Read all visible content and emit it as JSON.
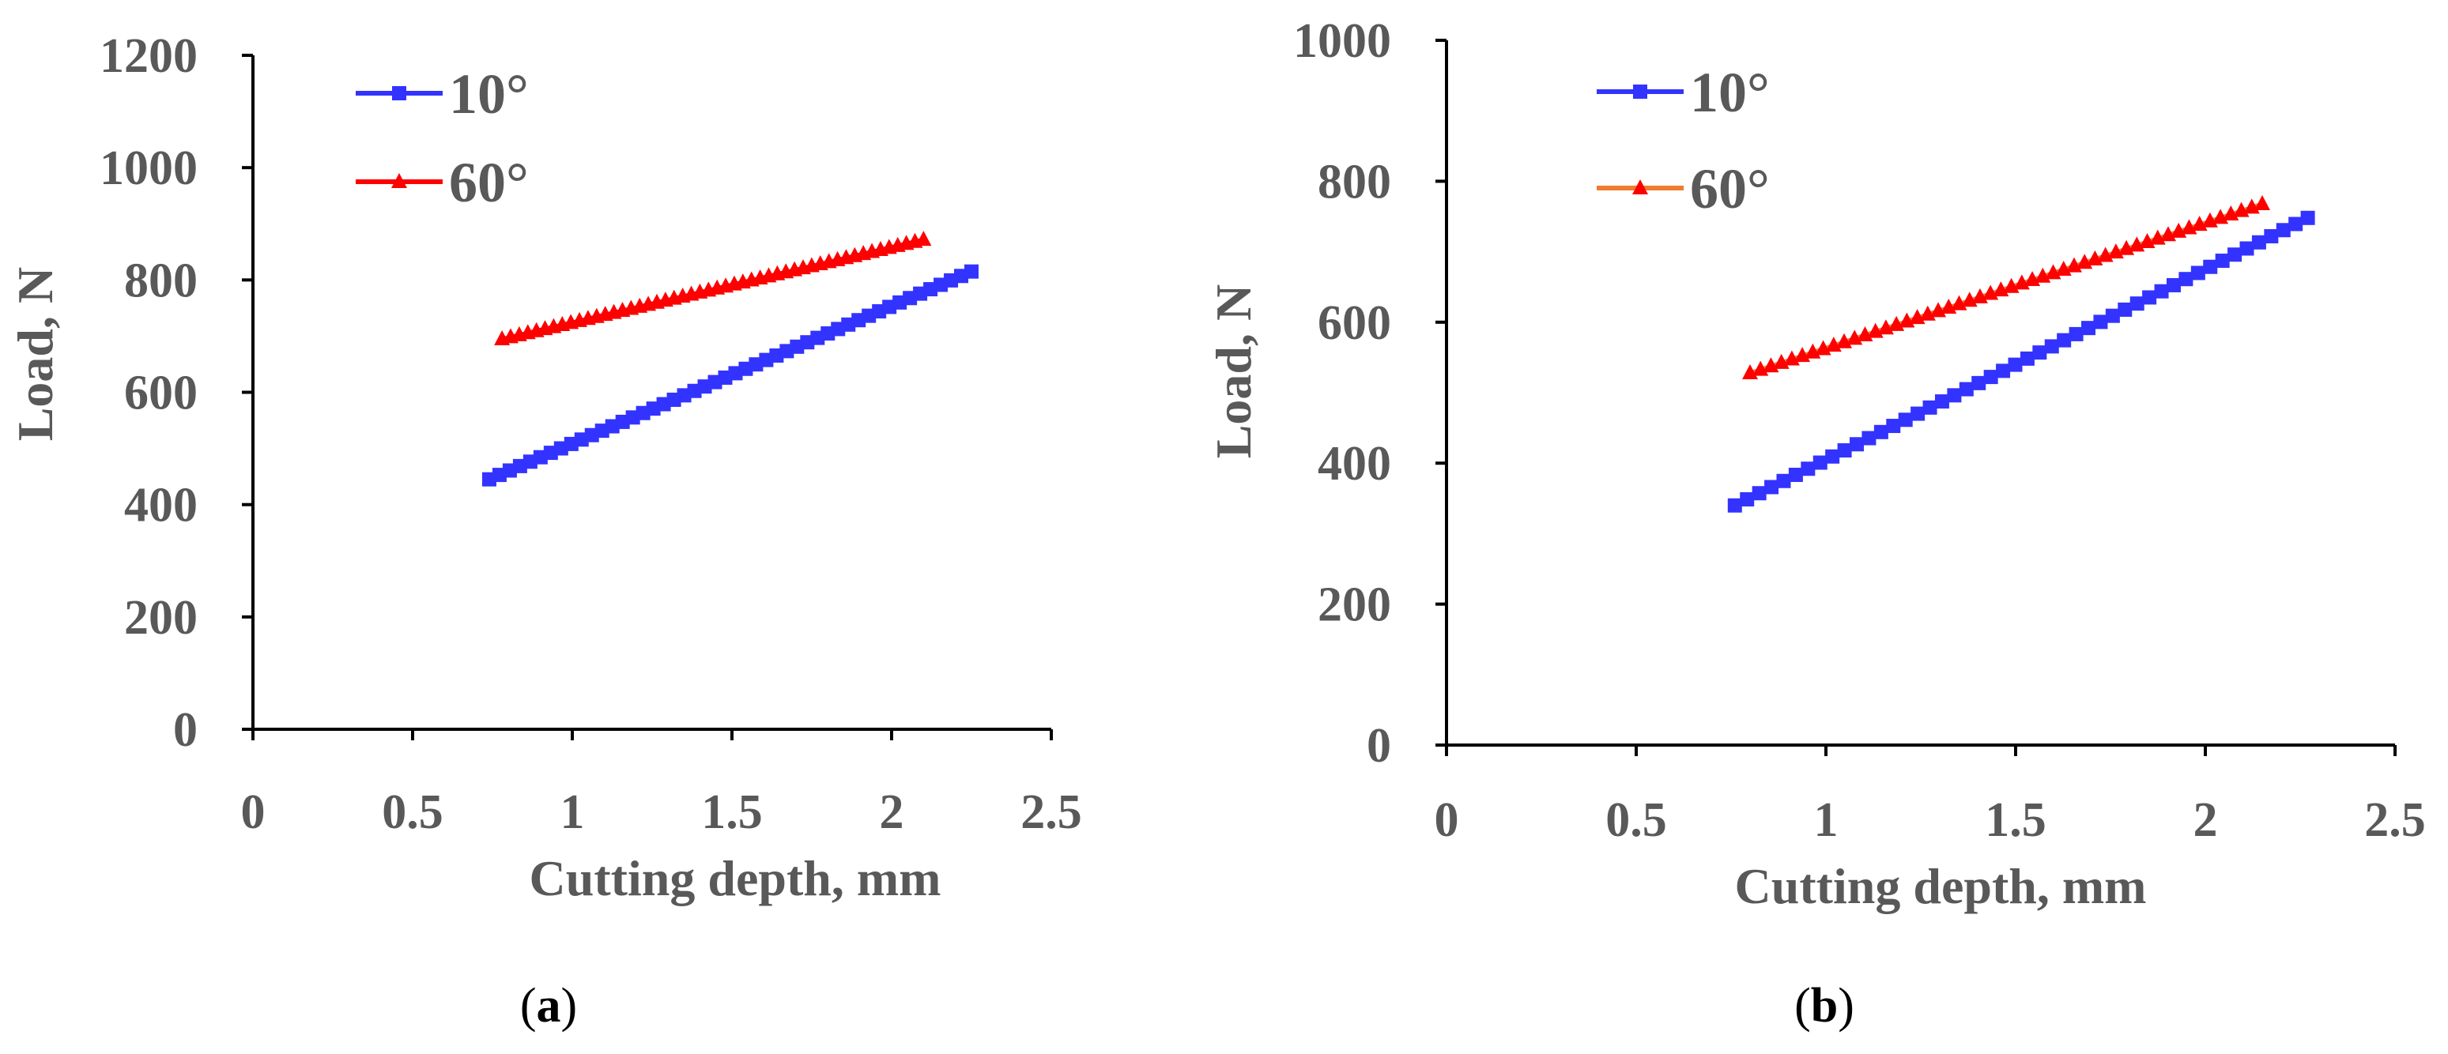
{
  "chart_data": [
    {
      "type": "line",
      "panel_label": "a",
      "xlabel": "Cutting depth, mm",
      "ylabel": "Load, N",
      "xlim": [
        0,
        2.5
      ],
      "ylim": [
        0,
        1200
      ],
      "x_ticks": [
        0,
        0.5,
        1,
        1.5,
        2,
        2.5
      ],
      "x_tick_labels": [
        "0",
        "0.5",
        "1",
        "1.5",
        "2",
        "2.5"
      ],
      "y_ticks": [
        0,
        200,
        400,
        600,
        800,
        1000,
        1200
      ],
      "y_tick_labels": [
        "0",
        "200",
        "400",
        "600",
        "800",
        "1000",
        "1200"
      ],
      "legend": {
        "position": "top-left",
        "entries": [
          "10°",
          "60°"
        ]
      },
      "series": [
        {
          "name": "10°",
          "color": "#3333ff",
          "marker": "square",
          "x_start": 0.74,
          "x_end": 2.25,
          "y_start": 445,
          "y_end": 815,
          "n_points": 48
        },
        {
          "name": "60°",
          "color": "#ff0000",
          "marker": "triangle",
          "x_start": 0.78,
          "x_end": 2.1,
          "y_start": 695,
          "y_end": 872,
          "n_points": 50
        }
      ]
    },
    {
      "type": "line",
      "panel_label": "b",
      "xlabel": "Cutting depth, mm",
      "ylabel": "Load, N",
      "xlim": [
        0,
        2.5
      ],
      "ylim": [
        0,
        1000
      ],
      "x_ticks": [
        0,
        0.5,
        1,
        1.5,
        2,
        2.5
      ],
      "x_tick_labels": [
        "0",
        "0.5",
        "1",
        "1.5",
        "2",
        "2.5"
      ],
      "y_ticks": [
        0,
        200,
        400,
        600,
        800,
        1000
      ],
      "y_tick_labels": [
        "0",
        "200",
        "400",
        "600",
        "800",
        "1000"
      ],
      "legend": {
        "position": "top-left",
        "entries": [
          "10°",
          "60°"
        ]
      },
      "series": [
        {
          "name": "10°",
          "color": "#3333ff",
          "line_color": "#3333ff",
          "marker": "square",
          "x_start": 0.76,
          "x_end": 2.27,
          "y_start": 340,
          "y_end": 748,
          "n_points": 48
        },
        {
          "name": "60°",
          "color": "#ff0000",
          "line_color": "#ed7d31",
          "marker": "triangle",
          "x_start": 0.8,
          "x_end": 2.15,
          "y_start": 528,
          "y_end": 768,
          "n_points": 50
        }
      ]
    }
  ]
}
